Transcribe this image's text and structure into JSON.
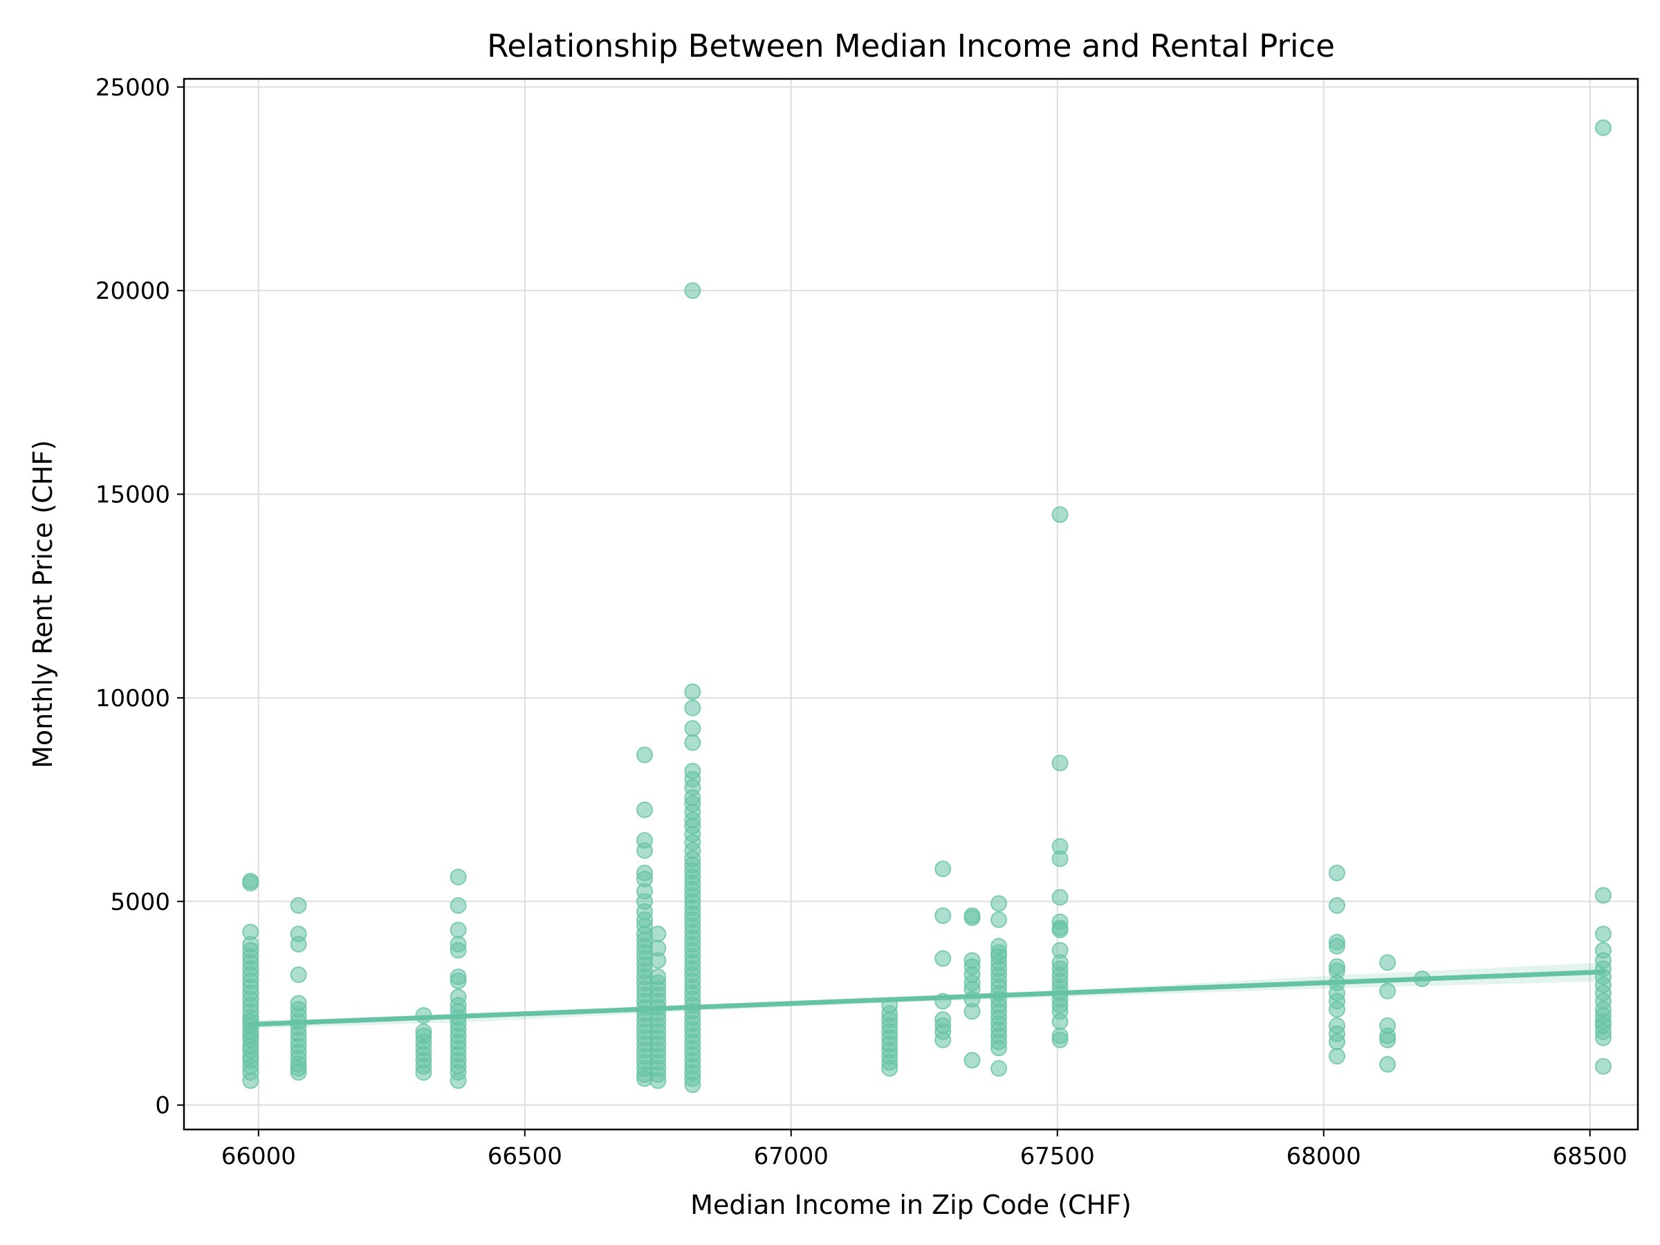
{
  "chart_data": {
    "type": "scatter",
    "title": "Relationship Between Median Income and Rental Price",
    "xlabel": "Median Income in Zip Code (CHF)",
    "ylabel": "Monthly Rent Price (CHF)",
    "xlim": [
      65860,
      68590
    ],
    "ylim": [
      -600,
      25200
    ],
    "xticks": [
      66000,
      66500,
      67000,
      67500,
      68000,
      68500
    ],
    "xtick_labels": [
      "66000",
      "66500",
      "67000",
      "67500",
      "68000",
      "68500"
    ],
    "yticks": [
      0,
      5000,
      10000,
      15000,
      20000,
      25000
    ],
    "ytick_labels": [
      "0",
      "5000",
      "10000",
      "15000",
      "20000",
      "25000"
    ],
    "grid": true,
    "legend": "none",
    "point_color": "#66c2a5",
    "line_color": "#66c2a5",
    "groups": [
      {
        "x": 65985,
        "y": [
          600,
          800,
          950,
          1100,
          1200,
          1350,
          1450,
          1600,
          1700,
          1800,
          1950,
          2050,
          2150,
          2300,
          2450,
          2600,
          2750,
          2900,
          3050,
          3200,
          3350,
          3500,
          3650,
          3800,
          3950,
          4250,
          5450,
          5500
        ]
      },
      {
        "x": 66075,
        "y": [
          800,
          900,
          1000,
          1150,
          1300,
          1450,
          1600,
          1750,
          1900,
          2050,
          2200,
          2350,
          2500,
          3200,
          3950,
          4200,
          4900
        ]
      },
      {
        "x": 66310,
        "y": [
          800,
          950,
          1100,
          1250,
          1400,
          1550,
          1700,
          1800,
          2200
        ]
      },
      {
        "x": 66375,
        "y": [
          600,
          800,
          950,
          1100,
          1250,
          1400,
          1550,
          1700,
          1850,
          2000,
          2150,
          2300,
          2450,
          2650,
          3050,
          3150,
          3800,
          3950,
          4300,
          4900,
          5600
        ]
      },
      {
        "x": 66725,
        "y": [
          650,
          750,
          900,
          1050,
          1200,
          1350,
          1500,
          1650,
          1800,
          1950,
          2100,
          2250,
          2400,
          2550,
          2700,
          2850,
          3000,
          3150,
          3300,
          3450,
          3600,
          3750,
          3900,
          4050,
          4200,
          4400,
          4550,
          4750,
          5000,
          5250,
          5550,
          5700,
          6250,
          6500,
          7250,
          8600
        ]
      },
      {
        "x": 66750,
        "y": [
          600,
          750,
          900,
          1050,
          1200,
          1350,
          1500,
          1650,
          1800,
          1950,
          2100,
          2250,
          2400,
          2550,
          2700,
          2850,
          3000,
          3150,
          3550,
          3850,
          4200
        ]
      },
      {
        "x": 66815,
        "y": [
          500,
          650,
          800,
          950,
          1100,
          1250,
          1400,
          1550,
          1700,
          1850,
          2000,
          2150,
          2300,
          2450,
          2600,
          2750,
          2900,
          3050,
          3200,
          3350,
          3500,
          3650,
          3800,
          3950,
          4100,
          4250,
          4400,
          4550,
          4700,
          4850,
          5000,
          5150,
          5300,
          5450,
          5600,
          5750,
          5900,
          6050,
          6250,
          6450,
          6650,
          6850,
          7000,
          7200,
          7400,
          7550,
          7800,
          8000,
          8200,
          8900,
          9250,
          9750,
          10150,
          20000
        ]
      },
      {
        "x": 67185,
        "y": [
          900,
          1050,
          1200,
          1350,
          1500,
          1650,
          1800,
          1950,
          2100,
          2250,
          2450
        ]
      },
      {
        "x": 67285,
        "y": [
          1600,
          1800,
          1950,
          2100,
          2550,
          3600,
          4650,
          5800
        ]
      },
      {
        "x": 67340,
        "y": [
          1100,
          2300,
          2600,
          2850,
          3000,
          3200,
          3400,
          3550,
          4600,
          4650
        ]
      },
      {
        "x": 67390,
        "y": [
          900,
          1400,
          1550,
          1700,
          1850,
          2000,
          2150,
          2300,
          2450,
          2600,
          2750,
          2900,
          3050,
          3200,
          3350,
          3500,
          3650,
          3750,
          3900,
          4550,
          4950
        ]
      },
      {
        "x": 67505,
        "y": [
          1600,
          1700,
          2050,
          2300,
          2450,
          2600,
          2750,
          2900,
          3050,
          3200,
          3350,
          3500,
          3800,
          4300,
          4350,
          4500,
          5100,
          6050,
          6350,
          8400,
          14500
        ]
      },
      {
        "x": 68025,
        "y": [
          1200,
          1550,
          1750,
          1950,
          2350,
          2550,
          2750,
          3000,
          3300,
          3400,
          3900,
          4000,
          4900,
          5700
        ]
      },
      {
        "x": 68120,
        "y": [
          1000,
          1600,
          1700,
          1950,
          2800,
          3500
        ]
      },
      {
        "x": 68185,
        "y": [
          3100
        ]
      },
      {
        "x": 68525,
        "y": [
          950,
          1650,
          1800,
          1950,
          2050,
          2200,
          2350,
          2550,
          2750,
          2950,
          3150,
          3350,
          3550,
          3800,
          4200,
          5150,
          24000
        ]
      }
    ],
    "regression": {
      "x": [
        65985,
        68525
      ],
      "y": [
        1980,
        3270
      ]
    },
    "confidence_band": {
      "x": [
        65985,
        66400,
        66800,
        67200,
        67600,
        68000,
        68525
      ],
      "upper": [
        2080,
        2190,
        2380,
        2620,
        2870,
        3170,
        3500
      ],
      "lower": [
        1880,
        2040,
        2300,
        2520,
        2690,
        2860,
        3040
      ]
    }
  }
}
